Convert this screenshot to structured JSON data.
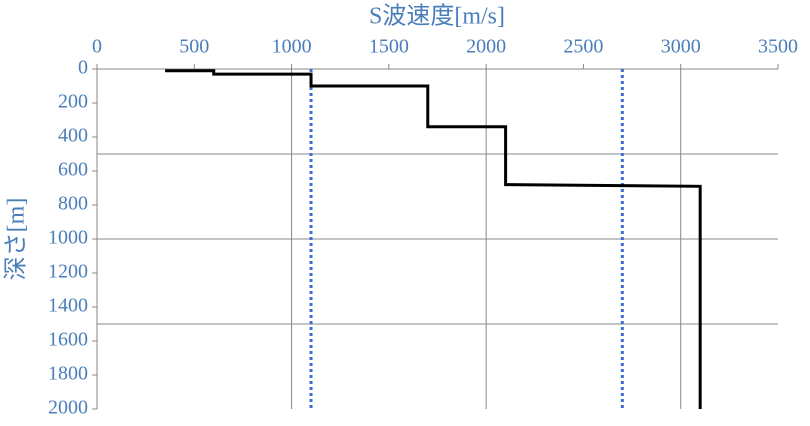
{
  "chart_data": {
    "type": "step-profile",
    "x_label": "S波速度[m/s]",
    "y_label": "深さ[m]",
    "xlim": [
      0,
      3500
    ],
    "xticks": [
      0,
      500,
      1000,
      1500,
      2000,
      2500,
      3000,
      3500
    ],
    "ylim": [
      0,
      2000
    ],
    "yticks": [
      0,
      200,
      400,
      600,
      800,
      1000,
      1200,
      1400,
      1600,
      1800,
      2000
    ],
    "y_inverted": true,
    "x_axis_position": "top",
    "xgrid": [
      1000,
      2000,
      3000
    ],
    "ygrid": [
      500,
      1000,
      1500
    ],
    "series": [
      {
        "color": "#000000",
        "x": [
          350,
          600,
          600,
          1100,
          1100,
          1700,
          1700,
          2100,
          2100,
          3100,
          3100
        ],
        "values": [
          10,
          10,
          30,
          30,
          100,
          100,
          340,
          340,
          680,
          690,
          2000
        ]
      }
    ],
    "vlines": {
      "color": "#3b6fd4",
      "values": [
        1100,
        2700
      ]
    }
  }
}
